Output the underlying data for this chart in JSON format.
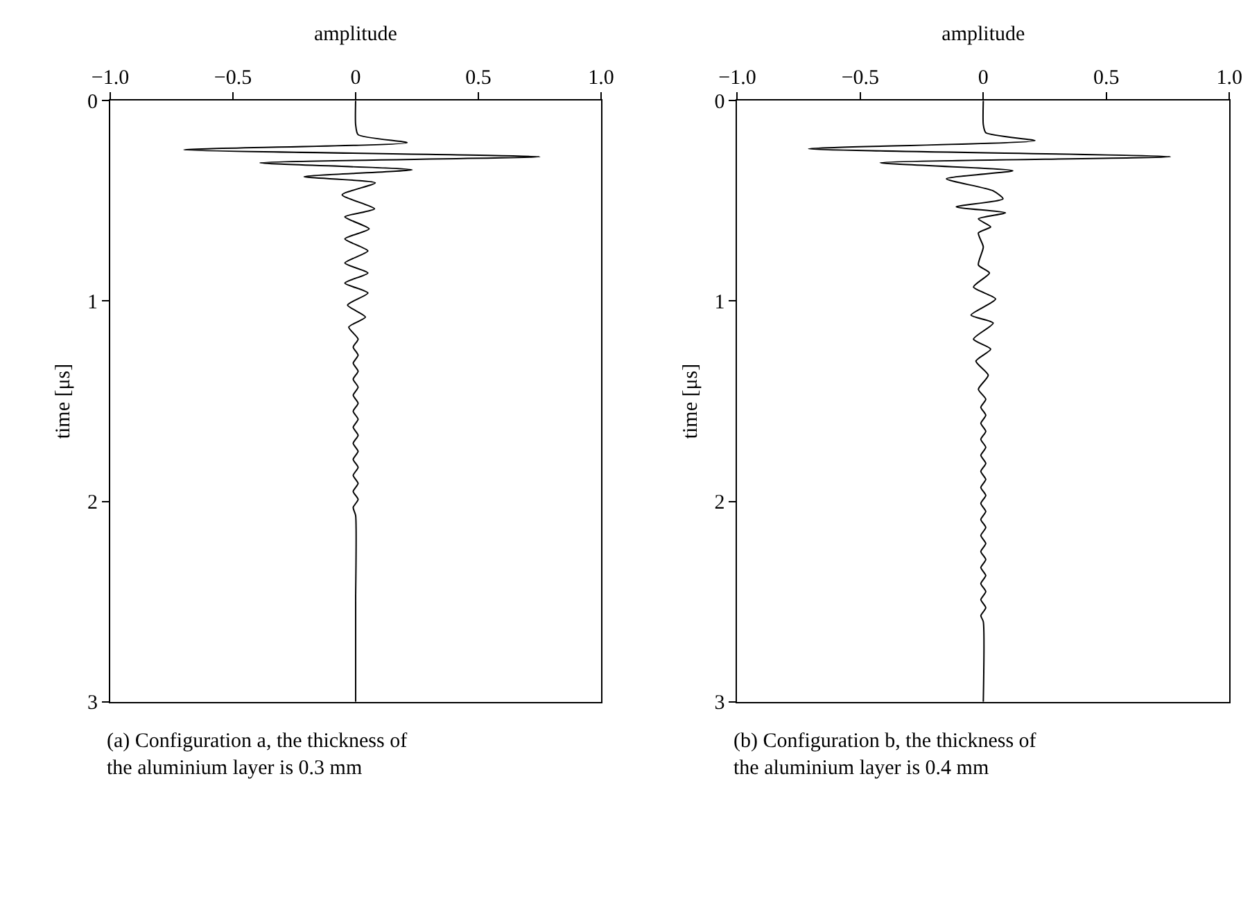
{
  "chart_data": [
    {
      "type": "line",
      "xlabel": "amplitude",
      "ylabel": "time [μs]",
      "xlim": [
        -1.0,
        1.0
      ],
      "ylim": [
        3,
        0
      ],
      "xticks": [
        {
          "value": -1.0,
          "label": "−1.0"
        },
        {
          "value": -0.5,
          "label": "−0.5"
        },
        0,
        0.5,
        {
          "value": 1.0,
          "label": "1.0"
        }
      ],
      "yticks": [
        0,
        1,
        2,
        3
      ],
      "series": [
        {
          "color": "#000000",
          "x": [
            0,
            0,
            0.01,
            0.21,
            -0.7,
            0.75,
            -0.39,
            0.23,
            -0.21,
            0.08,
            -0.055,
            0.077,
            -0.044,
            0.055,
            -0.044,
            0.05,
            -0.044,
            0.05,
            -0.044,
            0.05,
            -0.033,
            0.04,
            -0.028,
            0.01,
            -0.01,
            0.01,
            -0.01,
            0.01,
            -0.01,
            0.01,
            -0.01,
            0.01,
            -0.01,
            0.01,
            -0.01,
            0.01,
            -0.01,
            0.01,
            -0.01,
            0.01,
            -0.01,
            0.01,
            -0.01,
            0.01,
            -0.01,
            0,
            0,
            0
          ],
          "values": [
            0,
            0.12,
            0.17,
            0.21,
            0.245,
            0.28,
            0.31,
            0.345,
            0.38,
            0.41,
            0.47,
            0.54,
            0.58,
            0.64,
            0.69,
            0.75,
            0.81,
            0.86,
            0.91,
            0.96,
            1.02,
            1.08,
            1.13,
            1.19,
            1.23,
            1.27,
            1.31,
            1.35,
            1.39,
            1.43,
            1.47,
            1.51,
            1.55,
            1.59,
            1.63,
            1.67,
            1.71,
            1.75,
            1.79,
            1.83,
            1.87,
            1.91,
            1.95,
            1.99,
            2.03,
            2.07,
            2.5,
            3
          ]
        }
      ],
      "annotations": [
        "(a) Configuration a, the thickness of the aluminium layer is 0.3 mm"
      ]
    },
    {
      "type": "line",
      "xlabel": "amplitude",
      "ylabel": "time [μs]",
      "xlim": [
        -1.0,
        1.0
      ],
      "ylim": [
        3,
        0
      ],
      "xticks": [
        {
          "value": -1.0,
          "label": "−1.0"
        },
        {
          "value": -0.5,
          "label": "−0.5"
        },
        0,
        0.5,
        {
          "value": 1.0,
          "label": "1.0"
        }
      ],
      "yticks": [
        0,
        1,
        2,
        3
      ],
      "series": [
        {
          "color": "#000000",
          "x": [
            0,
            0,
            0.01,
            0.21,
            -0.71,
            0.76,
            -0.42,
            0.12,
            -0.15,
            0.04,
            0.08,
            -0.11,
            0.09,
            -0.02,
            0.03,
            -0.02,
            0,
            -0.02,
            0.025,
            -0.04,
            0.05,
            -0.05,
            0.04,
            -0.04,
            0.03,
            -0.03,
            0.02,
            -0.02,
            0.01,
            -0.01,
            0.01,
            -0.01,
            0.01,
            -0.01,
            0.01,
            -0.01,
            0.01,
            -0.01,
            0.01,
            -0.01,
            0.01,
            -0.01,
            0.01,
            -0.01,
            0.01,
            -0.01,
            0.01,
            -0.01,
            0.01,
            -0.01,
            0.01,
            -0.01,
            0.01,
            -0.01,
            0.01,
            -0.01,
            0,
            0
          ],
          "values": [
            0,
            0.12,
            0.16,
            0.2,
            0.24,
            0.28,
            0.31,
            0.35,
            0.39,
            0.45,
            0.49,
            0.53,
            0.56,
            0.59,
            0.63,
            0.66,
            0.73,
            0.82,
            0.86,
            0.93,
            0.99,
            1.07,
            1.11,
            1.19,
            1.24,
            1.3,
            1.37,
            1.44,
            1.49,
            1.53,
            1.57,
            1.61,
            1.65,
            1.69,
            1.73,
            1.77,
            1.81,
            1.85,
            1.89,
            1.93,
            1.97,
            2.01,
            2.05,
            2.09,
            2.13,
            2.17,
            2.21,
            2.25,
            2.29,
            2.33,
            2.37,
            2.41,
            2.45,
            2.49,
            2.53,
            2.57,
            2.6,
            3
          ]
        }
      ],
      "annotations": [
        "(b) Configuration b, the thickness of the aluminium layer is 0.4 mm"
      ]
    }
  ]
}
